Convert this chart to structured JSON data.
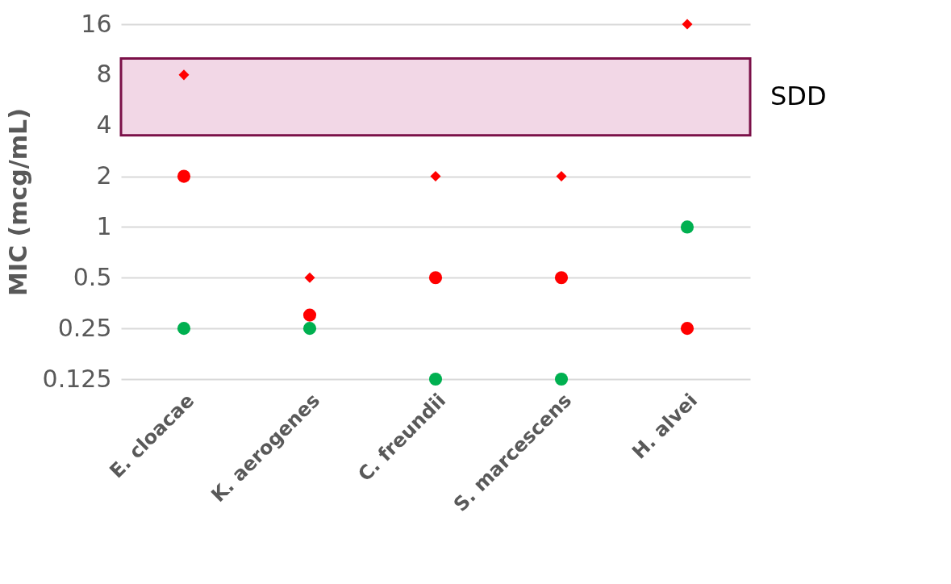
{
  "chart_data": {
    "type": "scatter",
    "ylabel": "MIC (mcg/mL)",
    "categories": [
      "E. cloacae",
      "K. aerogenes",
      "C. freundii",
      "S. marcescens",
      "H. alvei"
    ],
    "series": [
      {
        "color": "#ff0000",
        "marker": "diamond",
        "values": [
          8,
          0.5,
          2,
          2,
          16
        ]
      },
      {
        "color": "#ff0000",
        "marker": "circle",
        "values": [
          2,
          0.3,
          0.5,
          0.5,
          0.25
        ]
      },
      {
        "color": "#00b050",
        "marker": "circle",
        "values": [
          0.25,
          0.25,
          0.125,
          0.125,
          1
        ]
      }
    ],
    "log": "y",
    "ylim": [
      0.125,
      16
    ],
    "yticks": [
      0.125,
      0.25,
      0.5,
      1,
      2,
      4,
      8,
      16
    ],
    "grid": "y",
    "bands": [
      {
        "axis": "y",
        "from": 3.5,
        "to": 10,
        "label": "SDD",
        "color": "#f2d7e6"
      }
    ]
  }
}
